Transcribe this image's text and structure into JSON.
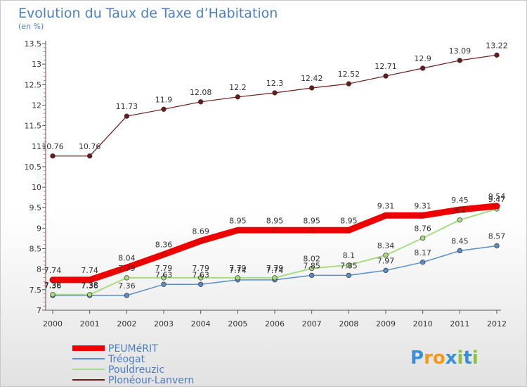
{
  "chart_data": {
    "type": "line",
    "title": "Evolution du Taux de Taxe d’Habitation",
    "subtitle": "(en %)",
    "x": [
      "2000",
      "2001",
      "2002",
      "2003",
      "2004",
      "2005",
      "2006",
      "2007",
      "2008",
      "2009",
      "2010",
      "2011",
      "2012"
    ],
    "ylim": [
      7,
      13.5
    ],
    "yticks": [
      "7",
      "7.5",
      "8",
      "8.5",
      "9",
      "9.5",
      "10",
      "10.5",
      "11",
      "11.5",
      "12",
      "12.5",
      "13",
      "13.5"
    ],
    "grid": false,
    "legend_position": "bottom-left",
    "series": [
      {
        "name": "Plonéour-Lanvern",
        "color": "#6b1a1a",
        "width": 1.2,
        "values": [
          10.76,
          10.76,
          11.73,
          11.9,
          12.08,
          12.2,
          12.3,
          12.42,
          12.52,
          12.71,
          12.9,
          13.09,
          13.22
        ],
        "labels": [
          "10.76",
          "10.76",
          "11.73",
          "11.9",
          "12.08",
          "12.2",
          "12.3",
          "12.42",
          "12.52",
          "12.71",
          "12.9",
          "13.09",
          "13.22"
        ]
      },
      {
        "name": "Tréogat",
        "color": "#5b8ec4",
        "width": 1.5,
        "values": [
          7.36,
          7.36,
          7.36,
          7.63,
          7.63,
          7.74,
          7.74,
          7.85,
          7.85,
          7.97,
          8.17,
          8.45,
          8.57
        ],
        "labels": [
          "7.36",
          "7.36",
          "7.36",
          "7.63",
          "7.63",
          "7.74",
          "7.74",
          "7.85",
          "7.85",
          "7.97",
          "8.17",
          "8.45",
          "8.57"
        ]
      },
      {
        "name": "Pouldreuzic",
        "color": "#a8dc84",
        "width": 2,
        "values": [
          7.38,
          7.38,
          7.79,
          7.79,
          7.79,
          7.79,
          7.79,
          8.02,
          8.1,
          8.34,
          8.76,
          9.2,
          9.47
        ],
        "labels": [
          "7.38",
          "7.38",
          "7.79",
          "7.79",
          "7.79",
          "7.79",
          "7.79",
          "8.02",
          "8.1",
          "8.34",
          "8.76",
          "9.2",
          "9.47"
        ]
      },
      {
        "name": "PEUMéRIT",
        "color": "#ee0000",
        "width": 9,
        "values": [
          7.74,
          7.74,
          8.04,
          8.36,
          8.69,
          8.95,
          8.95,
          8.95,
          8.95,
          9.31,
          9.31,
          9.45,
          9.54
        ],
        "labels": [
          "7.74",
          "7.74",
          "8.04",
          "8.36",
          "8.69",
          "8.95",
          "8.95",
          "8.95",
          "8.95",
          "9.31",
          "9.31",
          "9.45",
          "9.54"
        ]
      }
    ],
    "legend": [
      "PEUMéRIT",
      "Tréogat",
      "Pouldreuzic",
      "Plonéour-Lanvern"
    ]
  },
  "logo": {
    "letters": [
      "P",
      "r",
      "o",
      "x",
      "i",
      "t",
      "i"
    ],
    "colors": [
      "#3a8fd6",
      "#f29a1c",
      "#f29a1c",
      "#3a8fd6",
      "#8ac43f",
      "#3a8fd6",
      "#8ac43f"
    ]
  }
}
